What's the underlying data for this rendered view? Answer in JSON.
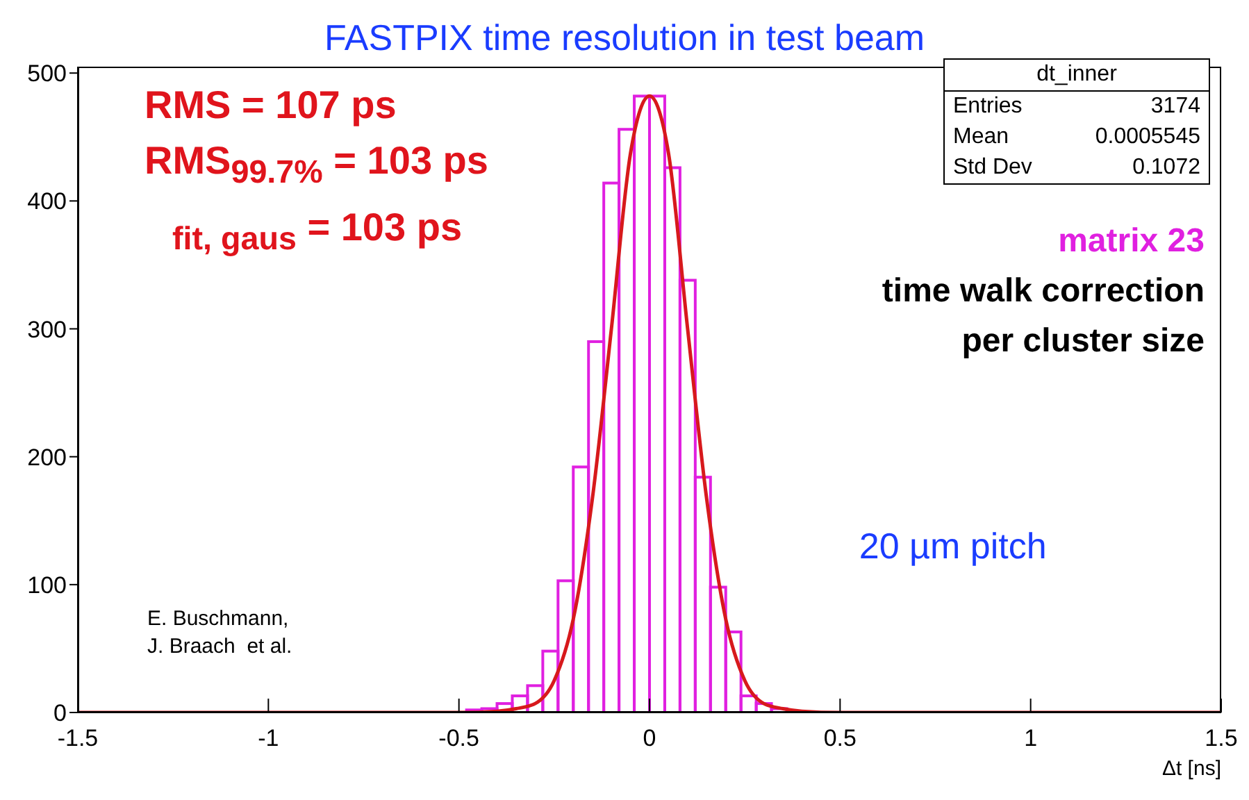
{
  "chart_data": {
    "type": "histogram",
    "title": "FASTPIX time resolution in test beam",
    "xlabel": "Δt [ns]",
    "bins": [
      -0.48,
      -0.44,
      -0.4,
      -0.36,
      -0.32,
      -0.28,
      -0.24,
      -0.2,
      -0.16,
      -0.12,
      -0.08,
      -0.04,
      0,
      0.04,
      0.08,
      0.12,
      0.16,
      0.2,
      0.24,
      0.28,
      0.32,
      0.36
    ],
    "series": [
      {
        "color": "#e020e0",
        "values": [
          2,
          3,
          7,
          13,
          21,
          48,
          103,
          192,
          290,
          414,
          456,
          482,
          482,
          426,
          338,
          184,
          98,
          63,
          13,
          7,
          3
        ]
      },
      {
        "type": "line",
        "color": "#d7191c",
        "x": [
          -1.5,
          -0.6,
          -0.5,
          -0.4,
          -0.35,
          -0.3,
          -0.25,
          -0.2,
          -0.15,
          -0.1,
          -0.05,
          0,
          0.05,
          0.1,
          0.15,
          0.2,
          0.25,
          0.3,
          0.35,
          0.4,
          0.5,
          0.6,
          1.5
        ],
        "values": [
          0,
          0,
          0,
          1,
          3,
          7,
          25,
          73,
          167,
          300,
          437,
          482,
          437,
          300,
          167,
          73,
          25,
          7,
          3,
          1,
          0,
          0,
          0
        ]
      }
    ],
    "xlim": [
      -1.5,
      1.5
    ],
    "xticks": [
      -1.5,
      -1,
      -0.5,
      0,
      0.5,
      1,
      1.5
    ],
    "ylim": [
      0,
      505
    ],
    "yticks": [
      0,
      100,
      200,
      300,
      400,
      500
    ],
    "annotations": [
      "RMS = 107 ps",
      "RMS$_{99.7%}$ = 103 ps",
      "$_{fit, gaus}$ = 103 ps",
      "dt_inner",
      "Entries",
      "3174",
      "Mean",
      "0.0005545",
      "Std Dev",
      "0.1072",
      "matrix 23",
      "time walk correction",
      "per cluster size",
      "20 µm pitch",
      "E. Buschmann,",
      "J. Braach  et al."
    ]
  }
}
